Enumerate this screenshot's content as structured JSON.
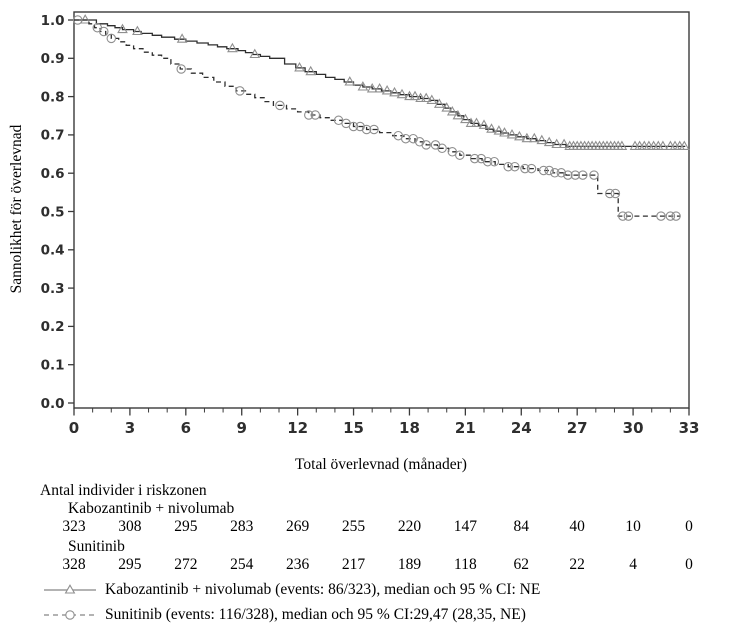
{
  "colors": {
    "background": "#ffffff",
    "curve": "#2e2e2e",
    "marker": "#8f8f8f",
    "axis": "#3a3a3a",
    "tick_label": "#2e2e2e",
    "legend_line": "#9a9a9a",
    "text": "#000000"
  },
  "chart_data": {
    "type": "line",
    "subtype": "kaplan-meier-step",
    "title": "",
    "xlabel": "Total överlevnad (månader)",
    "ylabel": "Sannolikhet för överlevnad",
    "xlim": [
      0,
      33
    ],
    "ylim": [
      0.0,
      1.0
    ],
    "grid": false,
    "legend_position": "below",
    "x_ticks": [
      "0",
      "3",
      "6",
      "9",
      "12",
      "15",
      "18",
      "21",
      "24",
      "27",
      "30",
      "33"
    ],
    "x_minor_tick_step": 1,
    "y_ticks": [
      "0.0",
      "0.1",
      "0.2",
      "0.3",
      "0.4",
      "0.5",
      "0.6",
      "0.7",
      "0.8",
      "0.9",
      "1.0"
    ],
    "series": [
      {
        "name": "Kabozantinib + nivolumab",
        "line_style": "solid",
        "marker": "triangle",
        "steps": [
          [
            0,
            1.0
          ],
          [
            1.2,
            0.99
          ],
          [
            1.8,
            0.985
          ],
          [
            2.2,
            0.98
          ],
          [
            2.6,
            0.975
          ],
          [
            3.2,
            0.97
          ],
          [
            3.6,
            0.965
          ],
          [
            4.2,
            0.96
          ],
          [
            4.7,
            0.955
          ],
          [
            5.4,
            0.95
          ],
          [
            6.0,
            0.945
          ],
          [
            6.6,
            0.94
          ],
          [
            7.2,
            0.935
          ],
          [
            7.7,
            0.93
          ],
          [
            8.2,
            0.925
          ],
          [
            8.8,
            0.92
          ],
          [
            9.2,
            0.915
          ],
          [
            9.6,
            0.91
          ],
          [
            10.0,
            0.905
          ],
          [
            10.5,
            0.9
          ],
          [
            11.3,
            0.885
          ],
          [
            11.9,
            0.875
          ],
          [
            12.4,
            0.865
          ],
          [
            13.0,
            0.858
          ],
          [
            13.5,
            0.85
          ],
          [
            14.0,
            0.845
          ],
          [
            14.5,
            0.838
          ],
          [
            15.0,
            0.83
          ],
          [
            15.5,
            0.825
          ],
          [
            16.0,
            0.82
          ],
          [
            16.5,
            0.815
          ],
          [
            17.0,
            0.81
          ],
          [
            17.5,
            0.805
          ],
          [
            18.0,
            0.8
          ],
          [
            18.6,
            0.795
          ],
          [
            19.1,
            0.79
          ],
          [
            19.5,
            0.78
          ],
          [
            19.9,
            0.77
          ],
          [
            20.2,
            0.76
          ],
          [
            20.6,
            0.75
          ],
          [
            20.9,
            0.74
          ],
          [
            21.3,
            0.73
          ],
          [
            21.7,
            0.725
          ],
          [
            22.1,
            0.715
          ],
          [
            22.5,
            0.71
          ],
          [
            22.9,
            0.705
          ],
          [
            23.3,
            0.7
          ],
          [
            23.8,
            0.695
          ],
          [
            24.3,
            0.69
          ],
          [
            24.8,
            0.685
          ],
          [
            25.3,
            0.68
          ],
          [
            25.8,
            0.675
          ],
          [
            26.4,
            0.67
          ],
          [
            32.8,
            0.67
          ]
        ],
        "censor_marks": [
          0.6,
          2.6,
          3.4,
          5.8,
          8.5,
          9.7,
          12.1,
          12.7,
          14.8,
          15.5,
          16.0,
          16.4,
          16.8,
          17.2,
          17.6,
          18.0,
          18.3,
          18.6,
          18.9,
          19.2,
          19.6,
          20.0,
          20.3,
          20.6,
          21.0,
          21.3,
          21.6,
          22.0,
          22.4,
          22.8,
          23.1,
          23.5,
          23.9,
          24.3,
          24.7,
          25.1,
          25.5,
          25.9,
          26.3,
          26.6,
          26.8,
          27.0,
          27.2,
          27.4,
          27.6,
          27.8,
          28.0,
          28.2,
          28.4,
          28.6,
          28.8,
          29.0,
          29.2,
          29.4,
          30.1,
          30.35,
          30.6,
          30.85,
          31.1,
          31.35,
          31.6,
          32.0,
          32.25,
          32.5,
          32.75
        ]
      },
      {
        "name": "Sunitinib",
        "line_style": "dashed",
        "marker": "circle",
        "steps": [
          [
            0,
            1.0
          ],
          [
            0.8,
            0.99
          ],
          [
            1.1,
            0.98
          ],
          [
            1.4,
            0.97
          ],
          [
            1.7,
            0.962
          ],
          [
            2.0,
            0.952
          ],
          [
            2.4,
            0.943
          ],
          [
            2.8,
            0.934
          ],
          [
            3.2,
            0.925
          ],
          [
            3.7,
            0.916
          ],
          [
            4.2,
            0.908
          ],
          [
            4.7,
            0.9
          ],
          [
            5.2,
            0.885
          ],
          [
            5.7,
            0.872
          ],
          [
            6.3,
            0.861
          ],
          [
            6.9,
            0.85
          ],
          [
            7.5,
            0.838
          ],
          [
            8.1,
            0.827
          ],
          [
            8.7,
            0.815
          ],
          [
            9.2,
            0.806
          ],
          [
            9.7,
            0.797
          ],
          [
            10.2,
            0.787
          ],
          [
            10.7,
            0.777
          ],
          [
            11.4,
            0.768
          ],
          [
            12.0,
            0.76
          ],
          [
            12.6,
            0.752
          ],
          [
            13.2,
            0.745
          ],
          [
            13.8,
            0.738
          ],
          [
            14.4,
            0.73
          ],
          [
            15.0,
            0.722
          ],
          [
            15.7,
            0.714
          ],
          [
            16.4,
            0.706
          ],
          [
            17.1,
            0.698
          ],
          [
            17.7,
            0.69
          ],
          [
            18.3,
            0.682
          ],
          [
            18.9,
            0.674
          ],
          [
            19.5,
            0.665
          ],
          [
            20.1,
            0.656
          ],
          [
            20.7,
            0.647
          ],
          [
            21.3,
            0.638
          ],
          [
            21.9,
            0.63
          ],
          [
            22.6,
            0.623
          ],
          [
            23.3,
            0.617
          ],
          [
            24.1,
            0.612
          ],
          [
            24.9,
            0.607
          ],
          [
            25.7,
            0.601
          ],
          [
            26.4,
            0.595
          ],
          [
            28.1,
            0.547
          ],
          [
            29.2,
            0.488
          ],
          [
            32.55,
            0.488
          ]
        ],
        "censor_marks": [
          0.2,
          1.25,
          1.6,
          2.0,
          5.75,
          8.9,
          11.05,
          12.6,
          12.95,
          14.2,
          14.6,
          15.0,
          15.35,
          15.7,
          16.1,
          17.4,
          17.8,
          18.2,
          18.55,
          18.9,
          19.4,
          19.75,
          20.3,
          20.7,
          21.5,
          21.85,
          22.2,
          22.55,
          23.3,
          23.65,
          24.2,
          24.55,
          25.2,
          25.5,
          25.8,
          26.15,
          26.5,
          26.9,
          27.3,
          27.9,
          28.75,
          29.05,
          29.45,
          29.75,
          31.5,
          32.0,
          32.3
        ]
      }
    ]
  },
  "risk_table": {
    "title": "Antal individer i riskzonen",
    "time_points": [
      0,
      3,
      6,
      9,
      12,
      15,
      18,
      21,
      24,
      27,
      30,
      33
    ],
    "groups": [
      {
        "label": "Kabozantinib + nivolumab",
        "counts": [
          "323",
          "308",
          "295",
          "283",
          "269",
          "255",
          "220",
          "147",
          "84",
          "40",
          "10",
          "0"
        ]
      },
      {
        "label": "Sunitinib",
        "counts": [
          "328",
          "295",
          "272",
          "254",
          "236",
          "217",
          "189",
          "118",
          "62",
          "22",
          "4",
          "0"
        ]
      }
    ]
  },
  "legend": {
    "items": [
      {
        "label": "Kabozantinib + nivolumab (events: 86/323), median och 95 % CI: NE",
        "line_style": "solid",
        "marker": "triangle"
      },
      {
        "label": "Sunitinib (events: 116/328), median och 95 % CI:29,47 (28,35, NE)",
        "line_style": "dashed",
        "marker": "circle"
      }
    ]
  }
}
